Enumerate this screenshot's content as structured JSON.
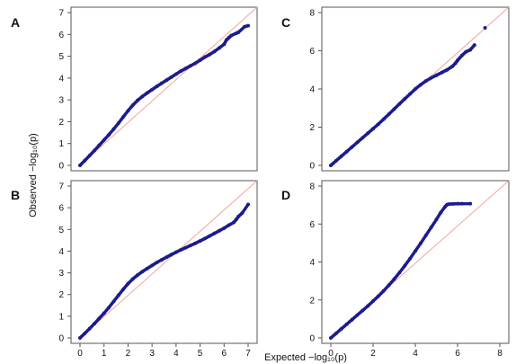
{
  "figure": {
    "ylabel": "Observed −log₁₀(p)",
    "xlabel": "Expected −log₁₀(p)"
  },
  "chart_data": [
    {
      "panel": "A",
      "type": "scatter",
      "xlim": [
        0,
        7
      ],
      "ylim": [
        0,
        7
      ],
      "xticks": [
        "0",
        "1",
        "2",
        "3",
        "4",
        "5",
        "6",
        "7"
      ],
      "yticks": [
        "0",
        "1",
        "2",
        "3",
        "4",
        "5",
        "6",
        "7"
      ],
      "show_xticks": false,
      "diagonal": true,
      "x": [
        0.0,
        0.2,
        0.4,
        0.6,
        0.8,
        1.0,
        1.2,
        1.4,
        1.6,
        1.8,
        2.0,
        2.2,
        2.4,
        2.6,
        2.8,
        3.0,
        3.2,
        3.4,
        3.6,
        3.8,
        4.0,
        4.2,
        4.4,
        4.6,
        4.8,
        5.0,
        5.2,
        5.4,
        5.6,
        5.8,
        6.0,
        6.1,
        6.2,
        6.3,
        6.5,
        6.6,
        6.85,
        7.0
      ],
      "y": [
        0.0,
        0.22,
        0.45,
        0.68,
        0.92,
        1.16,
        1.4,
        1.66,
        1.93,
        2.22,
        2.5,
        2.76,
        2.98,
        3.16,
        3.32,
        3.47,
        3.62,
        3.76,
        3.9,
        4.04,
        4.18,
        4.32,
        4.44,
        4.56,
        4.68,
        4.82,
        4.96,
        5.08,
        5.22,
        5.38,
        5.55,
        5.75,
        5.85,
        5.95,
        6.05,
        6.1,
        6.35,
        6.4
      ]
    },
    {
      "panel": "B",
      "type": "scatter",
      "xlim": [
        0,
        7
      ],
      "ylim": [
        0,
        7
      ],
      "xticks": [
        "0",
        "1",
        "2",
        "3",
        "4",
        "5",
        "6",
        "7"
      ],
      "yticks": [
        "0",
        "1",
        "2",
        "3",
        "4",
        "5",
        "6",
        "7"
      ],
      "show_xticks": true,
      "diagonal": true,
      "x": [
        0.0,
        0.2,
        0.4,
        0.6,
        0.8,
        1.0,
        1.2,
        1.4,
        1.6,
        1.8,
        2.0,
        2.2,
        2.4,
        2.6,
        2.8,
        3.0,
        3.2,
        3.4,
        3.6,
        3.8,
        4.0,
        4.2,
        4.4,
        4.6,
        4.8,
        5.0,
        5.2,
        5.4,
        5.6,
        5.8,
        6.0,
        6.2,
        6.4,
        6.5,
        6.6,
        6.75,
        7.0
      ],
      "y": [
        0.0,
        0.21,
        0.43,
        0.66,
        0.9,
        1.14,
        1.4,
        1.68,
        1.96,
        2.24,
        2.5,
        2.72,
        2.9,
        3.06,
        3.2,
        3.34,
        3.48,
        3.6,
        3.72,
        3.84,
        3.95,
        4.06,
        4.16,
        4.26,
        4.36,
        4.47,
        4.58,
        4.7,
        4.82,
        4.94,
        5.06,
        5.2,
        5.32,
        5.45,
        5.6,
        5.75,
        6.15
      ]
    },
    {
      "panel": "C",
      "type": "scatter",
      "xlim": [
        0,
        8
      ],
      "ylim": [
        0,
        8
      ],
      "xticks": [
        "0",
        "2",
        "4",
        "6",
        "8"
      ],
      "yticks": [
        "0",
        "2",
        "4",
        "6",
        "8"
      ],
      "show_xticks": false,
      "diagonal": true,
      "x": [
        0.0,
        0.25,
        0.5,
        0.75,
        1.0,
        1.25,
        1.5,
        1.75,
        2.0,
        2.25,
        2.5,
        2.75,
        3.0,
        3.25,
        3.5,
        3.75,
        4.0,
        4.25,
        4.5,
        4.75,
        5.0,
        5.25,
        5.5,
        5.75,
        5.9,
        6.0,
        6.2,
        6.4,
        6.6,
        6.8,
        7.3
      ],
      "y": [
        0.0,
        0.24,
        0.48,
        0.72,
        0.96,
        1.2,
        1.44,
        1.68,
        1.92,
        2.16,
        2.42,
        2.68,
        2.95,
        3.22,
        3.48,
        3.74,
        4.0,
        4.22,
        4.42,
        4.58,
        4.72,
        4.86,
        5.0,
        5.18,
        5.35,
        5.5,
        5.75,
        5.95,
        6.05,
        6.3,
        7.2
      ]
    },
    {
      "panel": "D",
      "type": "scatter",
      "xlim": [
        0,
        8
      ],
      "ylim": [
        0,
        8
      ],
      "xticks": [
        "0",
        "2",
        "4",
        "6",
        "8"
      ],
      "yticks": [
        "0",
        "2",
        "4",
        "6",
        "8"
      ],
      "show_xticks": true,
      "diagonal": true,
      "x": [
        0.0,
        0.25,
        0.5,
        0.75,
        1.0,
        1.25,
        1.5,
        1.75,
        2.0,
        2.25,
        2.5,
        2.75,
        3.0,
        3.25,
        3.5,
        3.75,
        4.0,
        4.25,
        4.5,
        4.75,
        5.0,
        5.2,
        5.4,
        5.5,
        5.6,
        5.8,
        6.0,
        6.2,
        6.6
      ],
      "y": [
        0.0,
        0.24,
        0.48,
        0.72,
        0.96,
        1.2,
        1.44,
        1.68,
        1.94,
        2.2,
        2.48,
        2.78,
        3.1,
        3.44,
        3.8,
        4.18,
        4.58,
        4.98,
        5.4,
        5.82,
        6.24,
        6.6,
        6.9,
        7.02,
        7.05,
        7.06,
        7.07,
        7.07,
        7.07
      ]
    }
  ]
}
